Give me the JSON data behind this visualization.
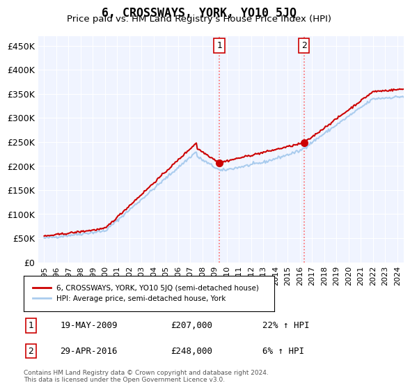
{
  "title": "6, CROSSWAYS, YORK, YO10 5JQ",
  "subtitle": "Price paid vs. HM Land Registry's House Price Index (HPI)",
  "ylabel_ticks": [
    "£0",
    "£50K",
    "£100K",
    "£150K",
    "£200K",
    "£250K",
    "£300K",
    "£350K",
    "£400K",
    "£450K"
  ],
  "ytick_values": [
    0,
    50000,
    100000,
    150000,
    200000,
    250000,
    300000,
    350000,
    400000,
    450000
  ],
  "ylim": [
    0,
    470000
  ],
  "xlim_start": 1995.0,
  "xlim_end": 2024.5,
  "line1_color": "#cc0000",
  "line2_color": "#aaccee",
  "marker1_date": 2009.38,
  "marker2_date": 2016.33,
  "marker1_value": 207000,
  "marker2_value": 248000,
  "vline_color": "#ff6666",
  "vline_style": ":",
  "legend_label1": "6, CROSSWAYS, YORK, YO10 5JQ (semi-detached house)",
  "legend_label2": "HPI: Average price, semi-detached house, York",
  "table_row1": [
    "1",
    "19-MAY-2009",
    "£207,000",
    "22% ↑ HPI"
  ],
  "table_row2": [
    "2",
    "29-APR-2016",
    "£248,000",
    "6% ↑ HPI"
  ],
  "footer": "Contains HM Land Registry data © Crown copyright and database right 2024.\nThis data is licensed under the Open Government Licence v3.0.",
  "background_color": "#ffffff",
  "plot_bg_color": "#f0f4ff"
}
